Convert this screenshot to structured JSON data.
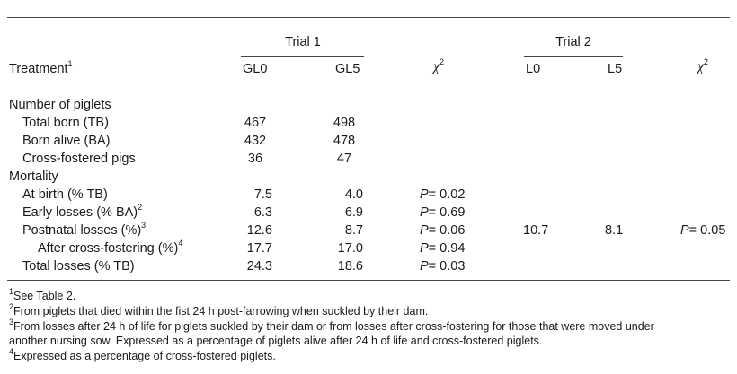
{
  "header": {
    "trial1": "Trial 1",
    "trial2": "Trial 2",
    "treatment": "Treatment",
    "treatment_sup": "1",
    "gl0": "GL0",
    "gl5": "GL5",
    "chi1": "χ",
    "chi1_sup": "2",
    "l0": "L0",
    "l5": "L5",
    "chi2": "χ",
    "chi2_sup": "2"
  },
  "sections": {
    "piglets": "Number of piglets",
    "mortality": "Mortality"
  },
  "rows": [
    {
      "label": "Total born (TB)",
      "sup": "",
      "gl0": "467",
      "gl5": "498",
      "p": "",
      "l0": "",
      "l5": "",
      "p2": ""
    },
    {
      "label": "Born alive (BA)",
      "sup": "",
      "gl0": "432",
      "gl5": "478",
      "p": "",
      "l0": "",
      "l5": "",
      "p2": ""
    },
    {
      "label": "Cross-fostered pigs",
      "sup": "",
      "gl0": "36",
      "gl5": "47",
      "p": "",
      "l0": "",
      "l5": "",
      "p2": ""
    },
    {
      "label": "At birth (% TB)",
      "sup": "",
      "gl0": "7.5",
      "gl5": "4.0",
      "p": "= 0.02",
      "l0": "",
      "l5": "",
      "p2": ""
    },
    {
      "label": "Early losses (% BA)",
      "sup": "2",
      "gl0": "6.3",
      "gl5": "6.9",
      "p": "= 0.69",
      "l0": "",
      "l5": "",
      "p2": ""
    },
    {
      "label": "Postnatal losses (%)",
      "sup": "3",
      "gl0": "12.6",
      "gl5": "8.7",
      "p": "= 0.06",
      "l0": "10.7",
      "l5": "8.1",
      "p2": "= 0.05"
    },
    {
      "label": "After cross-fostering (%)",
      "sup": "4",
      "gl0": "17.7",
      "gl5": "17.0",
      "p": "= 0.94",
      "l0": "",
      "l5": "",
      "p2": ""
    },
    {
      "label": "Total losses (% TB)",
      "sup": "",
      "gl0": "24.3",
      "gl5": "18.6",
      "p": "= 0.03",
      "l0": "",
      "l5": "",
      "p2": ""
    }
  ],
  "p_symbol": "P",
  "footnotes": [
    {
      "sup": "1",
      "text": "See Table 2."
    },
    {
      "sup": "2",
      "text": "From piglets that died within the fist 24 h post-farrowing when suckled by their dam."
    },
    {
      "sup": "3",
      "text": "From losses after 24 h of life for piglets suckled by their dam or from losses after cross-fostering for those that were moved under"
    },
    {
      "sup": "",
      "text": "another nursing sow. Expressed as a percentage of piglets alive after 24 h of life and cross-fostered piglets."
    },
    {
      "sup": "4",
      "text": "Expressed as a percentage of cross-fostered piglets."
    }
  ]
}
